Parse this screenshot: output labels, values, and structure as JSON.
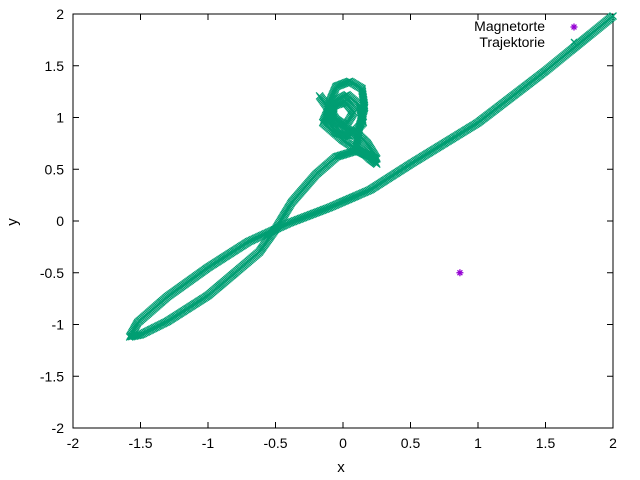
{
  "chart_data": {
    "type": "scatter",
    "title": "",
    "xlabel": "x",
    "ylabel": "y",
    "xlim": [
      -2,
      2
    ],
    "ylim": [
      -2,
      2
    ],
    "xticks": [
      "-2",
      "-1.5",
      "-1",
      "-0.5",
      "0",
      "0.5",
      "1",
      "1.5",
      "2"
    ],
    "yticks": [
      "-2",
      "-1.5",
      "-1",
      "-0.5",
      "0",
      "0.5",
      "1",
      "1.5",
      "2"
    ],
    "grid": false,
    "legend_position": "top-right",
    "series": [
      {
        "name": "Magnetorte",
        "color": "#9400d3",
        "marker": "star",
        "points": [
          [
            0.866,
            -0.5
          ]
        ]
      },
      {
        "name": "Trajektorie",
        "color": "#009e73",
        "marker": "x",
        "path_points": [
          [
            2.0,
            1.98
          ],
          [
            1.5,
            1.45
          ],
          [
            1.0,
            0.95
          ],
          [
            0.5,
            0.55
          ],
          [
            0.2,
            0.3
          ],
          [
            -0.1,
            0.13
          ],
          [
            -0.4,
            -0.02
          ],
          [
            -0.7,
            -0.2
          ],
          [
            -1.0,
            -0.45
          ],
          [
            -1.3,
            -0.73
          ],
          [
            -1.52,
            -0.98
          ],
          [
            -1.58,
            -1.12
          ],
          [
            -1.5,
            -1.1
          ],
          [
            -1.3,
            -0.97
          ],
          [
            -1.0,
            -0.72
          ],
          [
            -0.8,
            -0.5
          ],
          [
            -0.62,
            -0.3
          ],
          [
            -0.5,
            -0.08
          ],
          [
            -0.38,
            0.18
          ],
          [
            -0.2,
            0.45
          ],
          [
            -0.05,
            0.62
          ],
          [
            0.1,
            0.68
          ],
          [
            0.22,
            0.62
          ],
          [
            0.25,
            0.55
          ],
          [
            0.2,
            0.6
          ],
          [
            0.1,
            0.72
          ],
          [
            0.12,
            0.9
          ],
          [
            0.16,
            1.1
          ],
          [
            0.14,
            1.28
          ],
          [
            0.05,
            1.35
          ],
          [
            -0.05,
            1.3
          ],
          [
            -0.1,
            1.15
          ],
          [
            -0.12,
            1.0
          ],
          [
            -0.05,
            0.85
          ],
          [
            0.05,
            0.82
          ],
          [
            0.15,
            0.95
          ],
          [
            0.12,
            1.12
          ],
          [
            0.03,
            1.22
          ],
          [
            -0.06,
            1.16
          ],
          [
            -0.08,
            1.0
          ],
          [
            0.0,
            0.9
          ],
          [
            0.1,
            0.85
          ],
          [
            0.18,
            0.75
          ],
          [
            0.25,
            0.6
          ],
          [
            0.15,
            0.65
          ],
          [
            0.0,
            0.78
          ],
          [
            -0.15,
            0.95
          ],
          [
            -0.1,
            1.1
          ],
          [
            0.02,
            1.15
          ],
          [
            0.08,
            1.05
          ],
          [
            0.02,
            0.92
          ],
          [
            -0.05,
            0.98
          ],
          [
            -0.18,
            1.22
          ]
        ]
      }
    ]
  }
}
